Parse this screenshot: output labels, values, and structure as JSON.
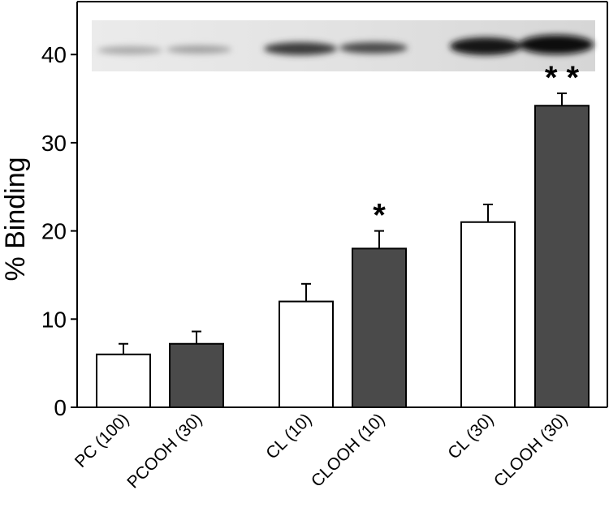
{
  "chart_data": {
    "type": "bar",
    "y_label": "% Binding",
    "categories": [
      "PC (100)",
      "PCOOH (30)",
      "CL (10)",
      "CLOOH (10)",
      "CL (30)",
      "CLOOH (30)"
    ],
    "values": [
      6,
      7.2,
      12,
      18,
      21,
      34.2
    ],
    "errors": [
      1.2,
      1.4,
      2,
      2,
      2,
      1.4
    ],
    "colors": [
      "#ffffff",
      "#4a4a4a",
      "#ffffff",
      "#4a4a4a",
      "#ffffff",
      "#4a4a4a"
    ],
    "annotations": [
      {
        "category": "CLOOH (10)",
        "text": "*"
      },
      {
        "category": "CLOOH (30)",
        "text": "* *"
      }
    ],
    "ylim": [
      0,
      46
    ],
    "yticks": [
      0,
      10,
      20,
      30,
      40
    ]
  }
}
